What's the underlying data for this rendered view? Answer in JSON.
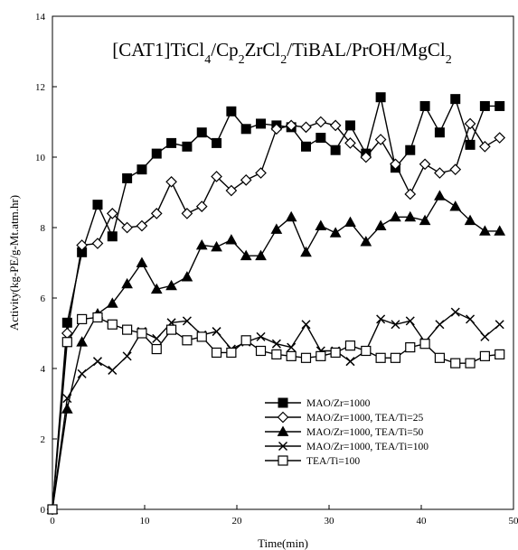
{
  "chart_data": {
    "type": "line",
    "title": "[CAT1]TiCl4/Cp2ZrCl2/TiBAL/PrOH/MgCl2",
    "title_parts": [
      {
        "text": "[CAT1]TiCl"
      },
      {
        "text": "4",
        "sub": true
      },
      {
        "text": "/Cp"
      },
      {
        "text": "2",
        "sub": true
      },
      {
        "text": "ZrCl"
      },
      {
        "text": "2",
        "sub": true
      },
      {
        "text": "/TiBAL/PrOH/MgCl"
      },
      {
        "text": "2",
        "sub": true
      }
    ],
    "xlabel": "Time(min)",
    "ylabel": "Activity(kg-PE/g-Mt.atm.hr)",
    "xlim": [
      0,
      50
    ],
    "ylim": [
      0,
      14
    ],
    "xticks": [
      0,
      10,
      20,
      30,
      40,
      50
    ],
    "yticks": [
      0,
      2,
      4,
      6,
      8,
      10,
      12,
      14
    ],
    "grid": false,
    "legend_position": "bottom-right",
    "series": [
      {
        "name": "MAO/Zr=1000",
        "marker": "filled-square",
        "x": [
          0,
          1.6,
          3.2,
          4.9,
          6.5,
          8.1,
          9.7,
          11.3,
          12.9,
          14.6,
          16.2,
          17.8,
          19.4,
          21.0,
          22.6,
          24.3,
          25.9,
          27.5,
          29.1,
          30.7,
          32.3,
          34.0,
          35.6,
          37.2,
          38.8,
          40.4,
          42.0,
          43.7,
          45.3,
          46.9,
          48.5
        ],
        "y": [
          0,
          5.3,
          7.3,
          8.65,
          7.75,
          9.4,
          9.65,
          10.1,
          10.4,
          10.3,
          10.7,
          10.4,
          11.3,
          10.8,
          10.95,
          10.9,
          10.85,
          10.3,
          10.55,
          10.2,
          10.9,
          10.1,
          11.7,
          9.7,
          10.2,
          11.45,
          10.7,
          11.65,
          10.35,
          11.45,
          11.45
        ]
      },
      {
        "name": "MAO/Zr=1000, TEA/Ti=25",
        "marker": "open-diamond",
        "x": [
          0,
          1.6,
          3.2,
          4.9,
          6.5,
          8.1,
          9.7,
          11.3,
          12.9,
          14.6,
          16.2,
          17.8,
          19.4,
          21.0,
          22.6,
          24.3,
          25.9,
          27.5,
          29.1,
          30.7,
          32.3,
          34.0,
          35.6,
          37.2,
          38.8,
          40.4,
          42.0,
          43.7,
          45.3,
          46.9,
          48.5
        ],
        "y": [
          0,
          5.0,
          7.5,
          7.55,
          8.4,
          8.0,
          8.05,
          8.4,
          9.3,
          8.4,
          8.6,
          9.45,
          9.05,
          9.35,
          9.55,
          10.8,
          10.9,
          10.85,
          11.0,
          10.9,
          10.4,
          10.0,
          10.5,
          9.8,
          8.95,
          9.8,
          9.55,
          9.65,
          10.95,
          10.3,
          10.55
        ]
      },
      {
        "name": "MAO/Zr=1000, TEA/Ti=50",
        "marker": "filled-triangle",
        "x": [
          0,
          1.6,
          3.2,
          4.9,
          6.5,
          8.1,
          9.7,
          11.3,
          12.9,
          14.6,
          16.2,
          17.8,
          19.4,
          21.0,
          22.6,
          24.3,
          25.9,
          27.5,
          29.1,
          30.7,
          32.3,
          34.0,
          35.6,
          37.2,
          38.8,
          40.4,
          42.0,
          43.7,
          45.3,
          46.9,
          48.5
        ],
        "y": [
          0,
          2.85,
          4.75,
          5.55,
          5.85,
          6.4,
          7.0,
          6.25,
          6.35,
          6.6,
          7.5,
          7.45,
          7.65,
          7.2,
          7.2,
          7.95,
          8.3,
          7.3,
          8.05,
          7.85,
          8.15,
          7.6,
          8.05,
          8.3,
          8.3,
          8.2,
          8.9,
          8.6,
          8.2,
          7.9,
          7.9
        ]
      },
      {
        "name": "MAO/Zr=1000, TEA/Ti=100",
        "marker": "x",
        "x": [
          0,
          1.6,
          3.2,
          4.9,
          6.5,
          8.1,
          9.7,
          11.3,
          12.9,
          14.6,
          16.2,
          17.8,
          19.4,
          21.0,
          22.6,
          24.3,
          25.9,
          27.5,
          29.1,
          30.7,
          32.3,
          34.0,
          35.6,
          37.2,
          38.8,
          40.4,
          42.0,
          43.7,
          45.3,
          46.9,
          48.5
        ],
        "y": [
          0,
          3.15,
          3.85,
          4.2,
          3.95,
          4.35,
          5.05,
          4.85,
          5.3,
          5.35,
          4.95,
          5.05,
          4.55,
          4.75,
          4.9,
          4.7,
          4.6,
          5.25,
          4.5,
          4.5,
          4.2,
          4.5,
          5.4,
          5.25,
          5.35,
          4.75,
          5.25,
          5.6,
          5.4,
          4.9,
          5.25
        ]
      },
      {
        "name": "TEA/Ti=100",
        "marker": "open-square",
        "x": [
          0,
          1.6,
          3.2,
          4.9,
          6.5,
          8.1,
          9.7,
          11.3,
          12.9,
          14.6,
          16.2,
          17.8,
          19.4,
          21.0,
          22.6,
          24.3,
          25.9,
          27.5,
          29.1,
          30.7,
          32.3,
          34.0,
          35.6,
          37.2,
          38.8,
          40.4,
          42.0,
          43.7,
          45.3,
          46.9,
          48.5
        ],
        "y": [
          0,
          4.75,
          5.4,
          5.45,
          5.25,
          5.1,
          5.0,
          4.55,
          5.1,
          4.8,
          4.9,
          4.45,
          4.45,
          4.8,
          4.5,
          4.4,
          4.35,
          4.3,
          4.35,
          4.45,
          4.65,
          4.5,
          4.3,
          4.3,
          4.6,
          4.7,
          4.3,
          4.15,
          4.15,
          4.35,
          4.4
        ]
      }
    ]
  }
}
